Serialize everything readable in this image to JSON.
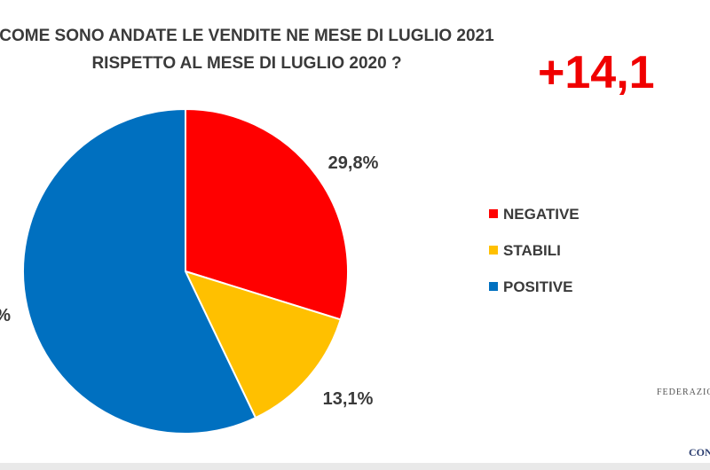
{
  "chart_data": {
    "type": "pie",
    "title_lines": [
      "COME SONO ANDATE LE VENDITE NE MESE DI LUGLIO 2021",
      "RISPETTO AL MESE DI LUGLIO 2020 ?"
    ],
    "slices": [
      {
        "name": "NEGATIVE",
        "value": 29.8,
        "label": "29,8%",
        "color": "#ff0000"
      },
      {
        "name": "STABILI",
        "value": 13.1,
        "label": "13,1%",
        "color": "#ffc000"
      },
      {
        "name": "POSITIVE",
        "value": 57.1,
        "label": "%",
        "color": "#0070c0"
      }
    ],
    "legend_placement": "right",
    "start_angle": "12 o'clock",
    "direction": "clockwise"
  },
  "headline": "+14,1",
  "footer": {
    "text": "FEDERAZION",
    "logo_text": "CONF"
  }
}
